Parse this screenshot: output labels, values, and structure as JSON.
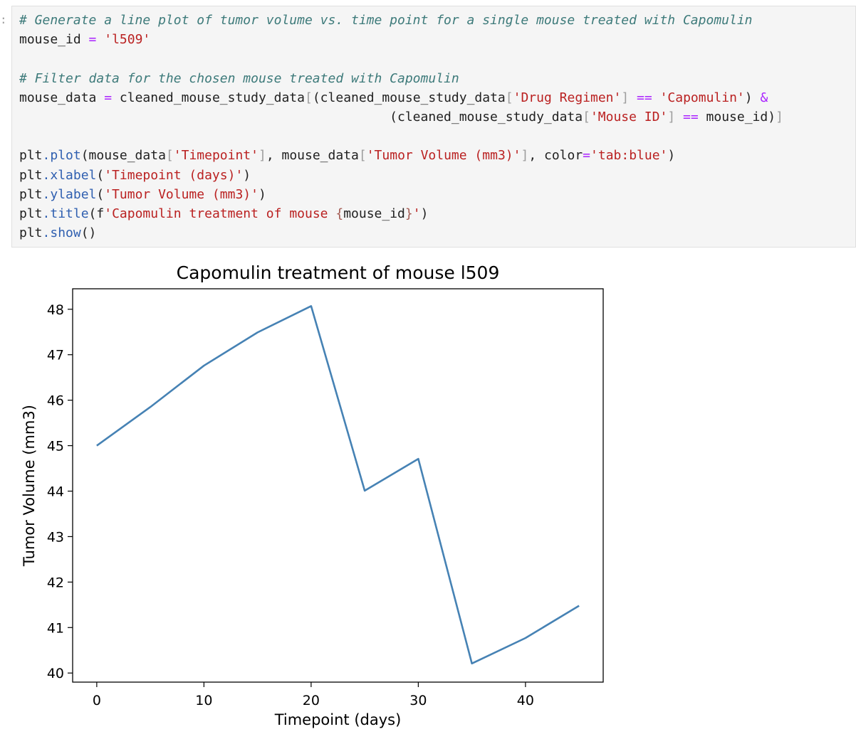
{
  "cell": {
    "prompt": ":",
    "code_lines": [
      [
        {
          "t": "# Generate a line plot of tumor volume vs. time point for a single mouse treated with Capomulin",
          "c": "t-comment"
        }
      ],
      [
        {
          "t": "mouse_id "
        },
        {
          "t": "=",
          "c": "t-op"
        },
        {
          "t": " "
        },
        {
          "t": "'l509'",
          "c": "t-str"
        }
      ],
      [],
      [
        {
          "t": "# Filter data for the chosen mouse treated with Capomulin",
          "c": "t-comment"
        }
      ],
      [
        {
          "t": "mouse_data "
        },
        {
          "t": "=",
          "c": "t-op"
        },
        {
          "t": " cleaned_mouse_study_data"
        },
        {
          "t": "[",
          "c": "t-brk"
        },
        {
          "t": "(cleaned_mouse_study_data"
        },
        {
          "t": "[",
          "c": "t-brk"
        },
        {
          "t": "'Drug Regimen'",
          "c": "t-str"
        },
        {
          "t": "]",
          "c": "t-brk"
        },
        {
          "t": " "
        },
        {
          "t": "==",
          "c": "t-op"
        },
        {
          "t": " "
        },
        {
          "t": "'Capomulin'",
          "c": "t-str"
        },
        {
          "t": ") "
        },
        {
          "t": "&",
          "c": "t-op"
        }
      ],
      [
        {
          "t": "                                                (cleaned_mouse_study_data"
        },
        {
          "t": "[",
          "c": "t-brk"
        },
        {
          "t": "'Mouse ID'",
          "c": "t-str"
        },
        {
          "t": "]",
          "c": "t-brk"
        },
        {
          "t": " "
        },
        {
          "t": "==",
          "c": "t-op"
        },
        {
          "t": " mouse_id)"
        },
        {
          "t": "]",
          "c": "t-brk"
        }
      ],
      [],
      [
        {
          "t": "plt"
        },
        {
          "t": ".plot",
          "c": "t-attr"
        },
        {
          "t": "(mouse_data"
        },
        {
          "t": "[",
          "c": "t-brk"
        },
        {
          "t": "'Timepoint'",
          "c": "t-str"
        },
        {
          "t": "]",
          "c": "t-brk"
        },
        {
          "t": ", mouse_data"
        },
        {
          "t": "[",
          "c": "t-brk"
        },
        {
          "t": "'Tumor Volume (mm3)'",
          "c": "t-str"
        },
        {
          "t": "]",
          "c": "t-brk"
        },
        {
          "t": ", color"
        },
        {
          "t": "=",
          "c": "t-op"
        },
        {
          "t": "'tab:blue'",
          "c": "t-str"
        },
        {
          "t": ")"
        }
      ],
      [
        {
          "t": "plt"
        },
        {
          "t": ".xlabel",
          "c": "t-attr"
        },
        {
          "t": "("
        },
        {
          "t": "'Timepoint (days)'",
          "c": "t-str"
        },
        {
          "t": ")"
        }
      ],
      [
        {
          "t": "plt"
        },
        {
          "t": ".ylabel",
          "c": "t-attr"
        },
        {
          "t": "("
        },
        {
          "t": "'Tumor Volume (mm3)'",
          "c": "t-str"
        },
        {
          "t": ")"
        }
      ],
      [
        {
          "t": "plt"
        },
        {
          "t": ".title",
          "c": "t-attr"
        },
        {
          "t": "(f"
        },
        {
          "t": "'Capomulin treatment of mouse ",
          "c": "t-fstr"
        },
        {
          "t": "{",
          "c": "t-interp"
        },
        {
          "t": "mouse_id"
        },
        {
          "t": "}",
          "c": "t-interp"
        },
        {
          "t": "'",
          "c": "t-fstr"
        },
        {
          "t": ")"
        }
      ],
      [
        {
          "t": "plt"
        },
        {
          "t": ".show",
          "c": "t-attr"
        },
        {
          "t": "()"
        }
      ]
    ]
  },
  "colors": {
    "line": "#4682b4",
    "cell_background": "#f5f5f5"
  },
  "chart_data": {
    "type": "line",
    "title": "Capomulin treatment of mouse l509",
    "xlabel": "Timepoint (days)",
    "ylabel": "Tumor Volume (mm3)",
    "xlim": [
      -2.25,
      47.25
    ],
    "ylim": [
      39.8,
      48.45
    ],
    "xticks": [
      0,
      10,
      20,
      30,
      40
    ],
    "yticks": [
      40,
      41,
      42,
      43,
      44,
      45,
      46,
      47,
      48
    ],
    "grid": false,
    "series": [
      {
        "x": [
          0,
          5,
          10,
          15,
          20,
          25,
          30,
          35,
          40,
          45
        ],
        "y": [
          45.0,
          45.85,
          46.76,
          47.49,
          48.07,
          44.01,
          44.71,
          40.21,
          40.77,
          41.48
        ]
      }
    ]
  }
}
